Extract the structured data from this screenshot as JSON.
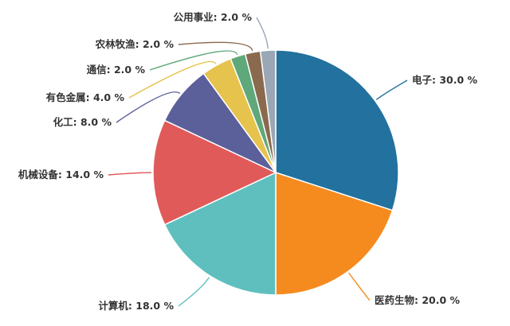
{
  "chart_data": {
    "type": "pie",
    "title": "",
    "slices": [
      {
        "label": "电子",
        "value": 30.0,
        "display": "电子: 30.0 %",
        "color": "#22719e"
      },
      {
        "label": "医药生物",
        "value": 20.0,
        "display": "医药生物: 20.0 %",
        "color": "#f58b1f"
      },
      {
        "label": "计算机",
        "value": 18.0,
        "display": "计算机: 18.0 %",
        "color": "#5fbfbf"
      },
      {
        "label": "机械设备",
        "value": 14.0,
        "display": "机械设备: 14.0 %",
        "color": "#e05a5a"
      },
      {
        "label": "化工",
        "value": 8.0,
        "display": "化工: 8.0 %",
        "color": "#5b5f9a"
      },
      {
        "label": "有色金属",
        "value": 4.0,
        "display": "有色金属: 4.0 %",
        "color": "#e6c34d"
      },
      {
        "label": "通信",
        "value": 2.0,
        "display": "通信: 2.0 %",
        "color": "#5fa87a"
      },
      {
        "label": "农林牧渔",
        "value": 2.0,
        "display": "农林牧渔: 2.0 %",
        "color": "#8a6a4e"
      },
      {
        "label": "公用事业",
        "value": 2.0,
        "display": "公用事业: 2.0 %",
        "color": "#9aa7b6"
      }
    ],
    "start_angle": "12 o'clock",
    "direction": "clockwise",
    "legend": "none"
  }
}
